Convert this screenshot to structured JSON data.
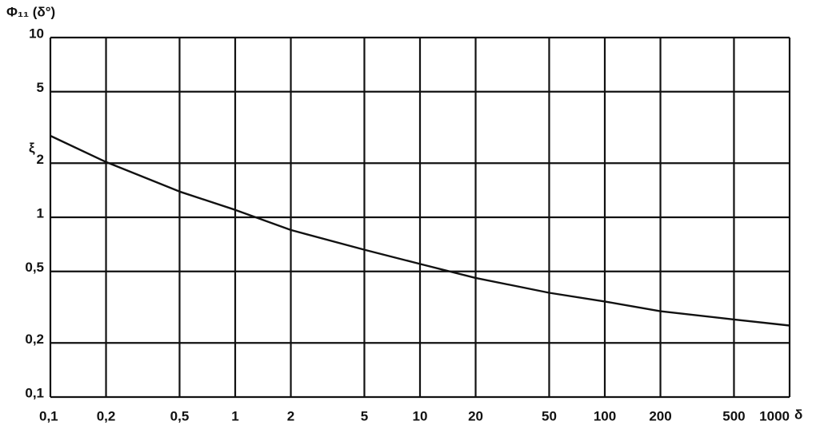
{
  "chart_data": {
    "type": "line",
    "ylabel": "Φ₁₁ (δ°)",
    "xlabel": "δ",
    "annotation": "ξ",
    "log_x": true,
    "log_y": true,
    "grid": true,
    "xlim": [
      0.1,
      1000
    ],
    "ylim": [
      0.1,
      10
    ],
    "xticks": [
      {
        "value": 0.1,
        "label": "0,1"
      },
      {
        "value": 0.2,
        "label": "0,2"
      },
      {
        "value": 0.5,
        "label": "0,5"
      },
      1,
      2,
      5,
      10,
      20,
      50,
      100,
      200,
      500,
      1000
    ],
    "yticks": [
      {
        "value": 0.1,
        "label": "0,1"
      },
      {
        "value": 0.2,
        "label": "0,2"
      },
      {
        "value": 0.5,
        "label": "0,5"
      },
      1,
      2,
      5,
      10
    ],
    "x": [
      0.1,
      0.2,
      0.5,
      1,
      2,
      5,
      10,
      20,
      50,
      100,
      200,
      500,
      1000
    ],
    "series": [
      {
        "color": "#111111",
        "values": [
          2.84,
          2.03,
          1.39,
          1.1,
          0.85,
          0.66,
          0.55,
          0.46,
          0.38,
          0.34,
          0.3,
          0.27,
          0.25
        ]
      }
    ]
  }
}
